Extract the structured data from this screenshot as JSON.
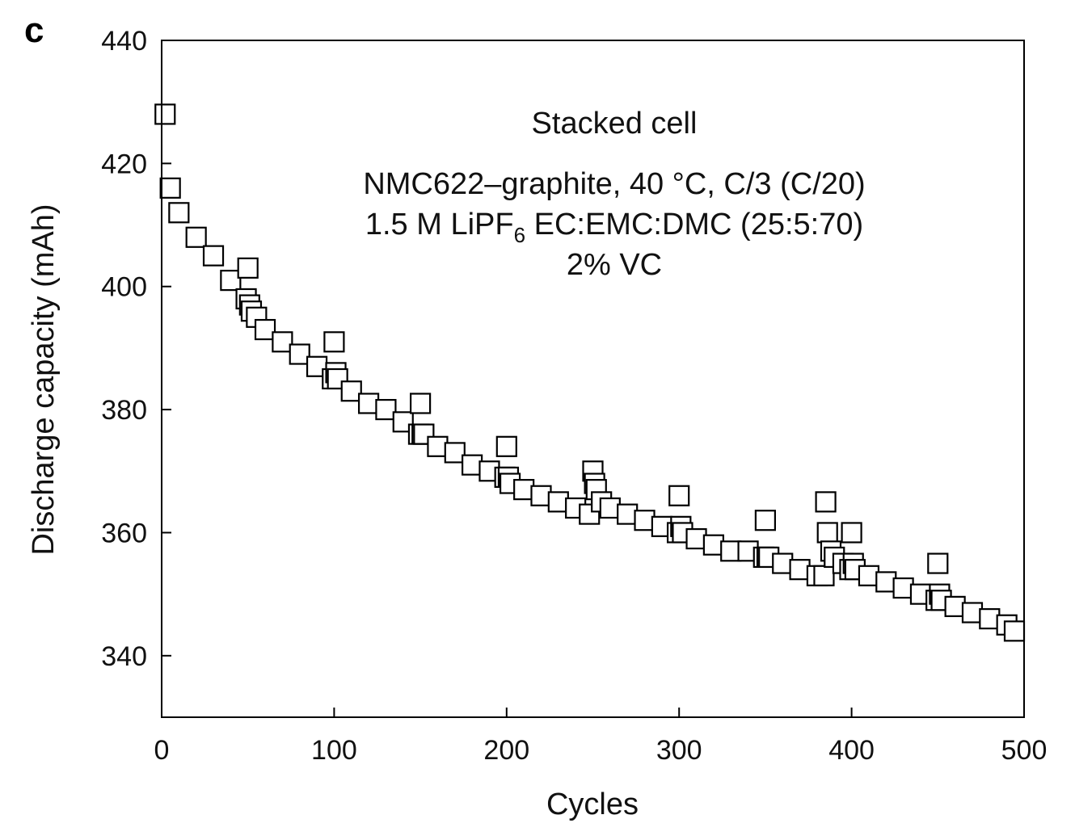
{
  "panel_label": "c",
  "chart_data": {
    "type": "scatter",
    "xlabel": "Cycles",
    "ylabel": "Discharge capacity (mAh)",
    "xlim": [
      0,
      500
    ],
    "ylim": [
      330,
      440
    ],
    "xticks": [
      0,
      100,
      200,
      300,
      400,
      500
    ],
    "yticks": [
      340,
      360,
      380,
      400,
      420,
      440
    ],
    "grid": false,
    "annotations": {
      "line1": "Stacked cell",
      "line2": "NMC622–graphite, 40 °C, C/3 (C/20)",
      "line3_prefix": "1.5 M LiPF",
      "line3_sub": "6",
      "line3_suffix": " EC:EMC:DMC (25:5:70)",
      "line4": "2% VC"
    },
    "marker": "open-square",
    "x": [
      2,
      5,
      10,
      20,
      30,
      40,
      49,
      50,
      51,
      52,
      55,
      60,
      70,
      80,
      90,
      99,
      100,
      101,
      102,
      110,
      120,
      130,
      140,
      149,
      150,
      151,
      152,
      160,
      170,
      180,
      190,
      199,
      200,
      201,
      202,
      210,
      220,
      230,
      240,
      248,
      250,
      251,
      252,
      255,
      260,
      270,
      280,
      290,
      299,
      300,
      301,
      302,
      310,
      320,
      330,
      340,
      349,
      350,
      351,
      352,
      360,
      370,
      380,
      384,
      385,
      386,
      388,
      390,
      395,
      399,
      400,
      401,
      402,
      410,
      420,
      430,
      440,
      449,
      450,
      451,
      452,
      460,
      470,
      480,
      490,
      500
    ],
    "y": [
      428,
      416,
      412,
      408,
      405,
      401,
      398,
      403,
      397,
      396,
      395,
      393,
      391,
      389,
      387,
      385,
      391,
      386,
      385,
      383,
      381,
      380,
      378,
      376,
      381,
      376,
      376,
      374,
      373,
      371,
      370,
      369,
      374,
      369,
      368,
      367,
      366,
      365,
      364,
      363,
      370,
      368,
      367,
      365,
      364,
      363,
      362,
      361,
      360,
      366,
      361,
      360,
      359,
      358,
      357,
      357,
      356,
      362,
      356,
      356,
      355,
      354,
      353,
      353,
      365,
      360,
      357,
      356,
      355,
      354,
      360,
      355,
      354,
      353,
      352,
      351,
      350,
      349,
      355,
      350,
      349,
      348,
      347,
      346,
      345,
      344
    ]
  }
}
